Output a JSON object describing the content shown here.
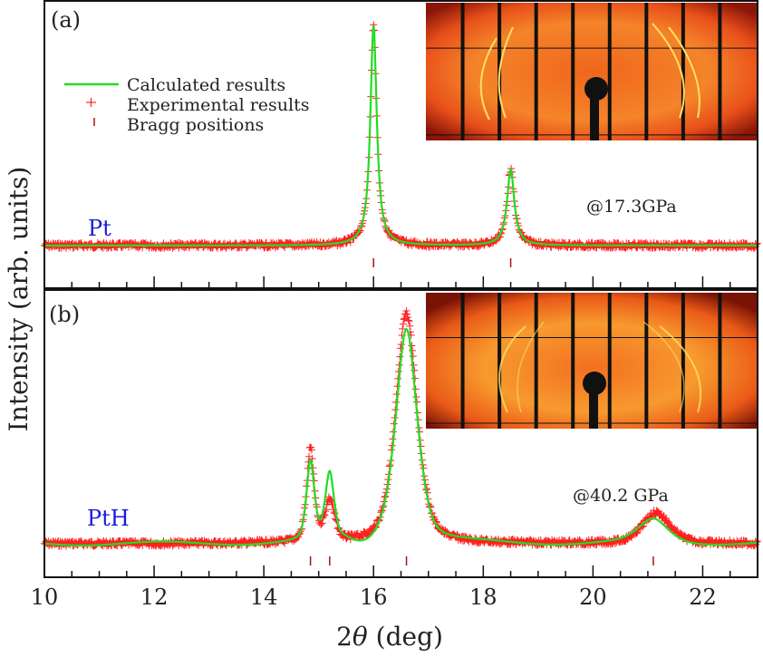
{
  "chart_data": [
    {
      "panel": "(a)",
      "type": "line",
      "sample_label": "Pt",
      "pressure_label": "@17.3GPa",
      "xlim": [
        10,
        23
      ],
      "ylim": [
        0,
        1
      ],
      "grid": false,
      "calculated_peaks": [
        {
          "center": 16.0,
          "height": 0.9,
          "width": 0.07
        },
        {
          "center": 18.5,
          "height": 0.31,
          "width": 0.08
        }
      ],
      "baseline": 0.0,
      "bragg_positions": [
        16.0,
        18.5
      ],
      "inset": "2D diffraction image (Pt)"
    },
    {
      "panel": "(b)",
      "type": "line",
      "sample_label": "PtH",
      "pressure_label": "@40.2 GPa",
      "xlim": [
        10,
        23
      ],
      "ylim": [
        0,
        1
      ],
      "grid": false,
      "calculated_peaks": [
        {
          "center": 14.85,
          "height": 0.33,
          "width": 0.08
        },
        {
          "center": 15.2,
          "height": 0.28,
          "width": 0.09
        },
        {
          "center": 16.6,
          "height": 0.91,
          "width": 0.22
        },
        {
          "center": 21.1,
          "height": 0.1,
          "width": 0.3
        }
      ],
      "experimental_peaks": [
        {
          "center": 14.85,
          "height": 0.39,
          "width": 0.08
        },
        {
          "center": 15.2,
          "height": 0.17,
          "width": 0.1
        },
        {
          "center": 16.6,
          "height": 0.97,
          "width": 0.22
        },
        {
          "center": 21.15,
          "height": 0.13,
          "width": 0.28
        }
      ],
      "baseline": 0.0,
      "bragg_positions": [
        14.85,
        15.2,
        16.6,
        21.1
      ],
      "inset": "2D diffraction image (PtH)"
    }
  ],
  "xaxis": {
    "label_prefix": "2",
    "label_theta": "θ",
    "label_suffix": " (deg)",
    "ticks": [
      "10",
      "12",
      "14",
      "16",
      "18",
      "20",
      "22"
    ],
    "tick_values": [
      10,
      12,
      14,
      16,
      18,
      20,
      22
    ]
  },
  "yaxis": {
    "label": "Intensity (arb. units)"
  },
  "legend": {
    "placement": "top-left",
    "items": [
      {
        "label": "Calculated results",
        "color": "#22dd22",
        "marker": "line"
      },
      {
        "label": "Experimental results",
        "color": "#ff2020",
        "marker": "plus"
      },
      {
        "label": "Bragg positions",
        "color": "#b01010",
        "marker": "tick"
      }
    ]
  },
  "colors": {
    "calc": "#22dd22",
    "exp": "#ff2020",
    "bragg": "#b01010",
    "sample": "#1a1adc"
  }
}
